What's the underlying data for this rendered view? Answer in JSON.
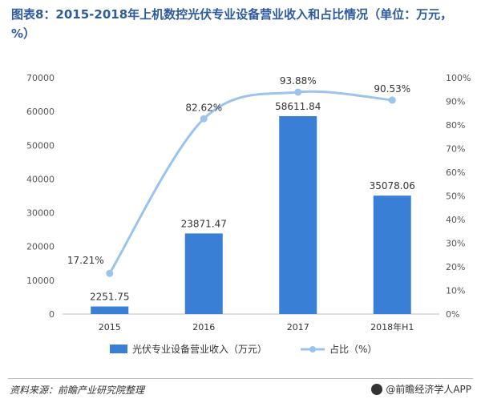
{
  "title": "图表8：2015-2018年上机数控光伏专业设备营业收入和占比情况（单位：万元，%）",
  "chart_data": {
    "type": "bar",
    "categories": [
      "2015",
      "2016",
      "2017",
      "2018年H1"
    ],
    "series": [
      {
        "name": "光伏专业设备营业收入（万元）",
        "type": "bar",
        "axis": "left",
        "values": [
          2251.75,
          23871.47,
          58611.84,
          35078.06
        ],
        "labels": [
          "2251.75",
          "23871.47",
          "58611.84",
          "35078.06"
        ],
        "color": "#3a7fd6"
      },
      {
        "name": "占比（%）",
        "type": "line",
        "axis": "right",
        "values": [
          17.21,
          82.62,
          93.88,
          90.53
        ],
        "labels": [
          "17.21%",
          "82.62%",
          "93.88%",
          "90.53%"
        ],
        "color": "#9cc3ec"
      }
    ],
    "y_left": {
      "min": 0,
      "max": 70000,
      "ticks": [
        0,
        10000,
        20000,
        30000,
        40000,
        50000,
        60000,
        70000
      ],
      "tick_labels": [
        "0",
        "10000",
        "20000",
        "30000",
        "40000",
        "50000",
        "60000",
        "70000"
      ]
    },
    "y_right": {
      "min": 0,
      "max": 100,
      "ticks": [
        0,
        10,
        20,
        30,
        40,
        50,
        60,
        70,
        80,
        90,
        100
      ],
      "tick_labels": [
        "0%",
        "10%",
        "20%",
        "30%",
        "40%",
        "50%",
        "60%",
        "70%",
        "80%",
        "90%",
        "100%"
      ]
    },
    "legend_position": "bottom",
    "grid": false
  },
  "footer": {
    "source": "资料来源：前瞻产业研究院整理",
    "brand": "@前瞻经济学人APP"
  }
}
